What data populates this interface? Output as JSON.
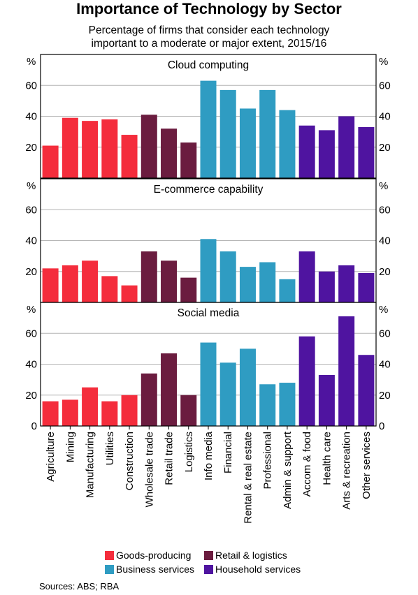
{
  "title": "Importance of Technology by Sector",
  "subtitle": "Percentage of firms that consider each technology\nimportant to a moderate or major extent, 2015/16",
  "sources": "Sources:   ABS; RBA",
  "chart_data": {
    "type": "bar",
    "categories": [
      "Agriculture",
      "Mining",
      "Manufacturing",
      "Utilities",
      "Construction",
      "Wholesale trade",
      "Retail trade",
      "Logistics",
      "Info media",
      "Financial",
      "Rental & real estate",
      "Professional",
      "Admin & support",
      "Accom & food",
      "Health care",
      "Arts & recreation",
      "Other services"
    ],
    "category_groups": [
      0,
      0,
      0,
      0,
      0,
      1,
      1,
      1,
      2,
      2,
      2,
      2,
      2,
      3,
      3,
      3,
      3
    ],
    "groups": [
      {
        "name": "Goods-producing",
        "color": "#f42d3c"
      },
      {
        "name": "Retail & logistics",
        "color": "#6b1c3f"
      },
      {
        "name": "Business services",
        "color": "#2f9cc2"
      },
      {
        "name": "Household services",
        "color": "#4f14a0"
      }
    ],
    "panels": [
      {
        "title": "Cloud computing",
        "unit": "%",
        "ylim": [
          0,
          80
        ],
        "yticks": [
          20,
          40,
          60
        ],
        "values": [
          21,
          39,
          37,
          38,
          28,
          41,
          32,
          23,
          63,
          57,
          45,
          57,
          44,
          34,
          31,
          40,
          33
        ]
      },
      {
        "title": "E-commerce capability",
        "unit": "%",
        "ylim": [
          0,
          80
        ],
        "yticks": [
          20,
          40,
          60
        ],
        "values": [
          22,
          24,
          27,
          17,
          11,
          33,
          27,
          16,
          41,
          33,
          23,
          26,
          15,
          33,
          20,
          24,
          19
        ]
      },
      {
        "title": "Social media",
        "unit": "%",
        "ylim": [
          0,
          80
        ],
        "yticks": [
          0,
          20,
          40,
          60
        ],
        "values": [
          16,
          17,
          25,
          16,
          20,
          34,
          47,
          20,
          54,
          41,
          50,
          27,
          28,
          58,
          33,
          71,
          46
        ]
      }
    ],
    "grid": true,
    "legend": "bottom"
  }
}
